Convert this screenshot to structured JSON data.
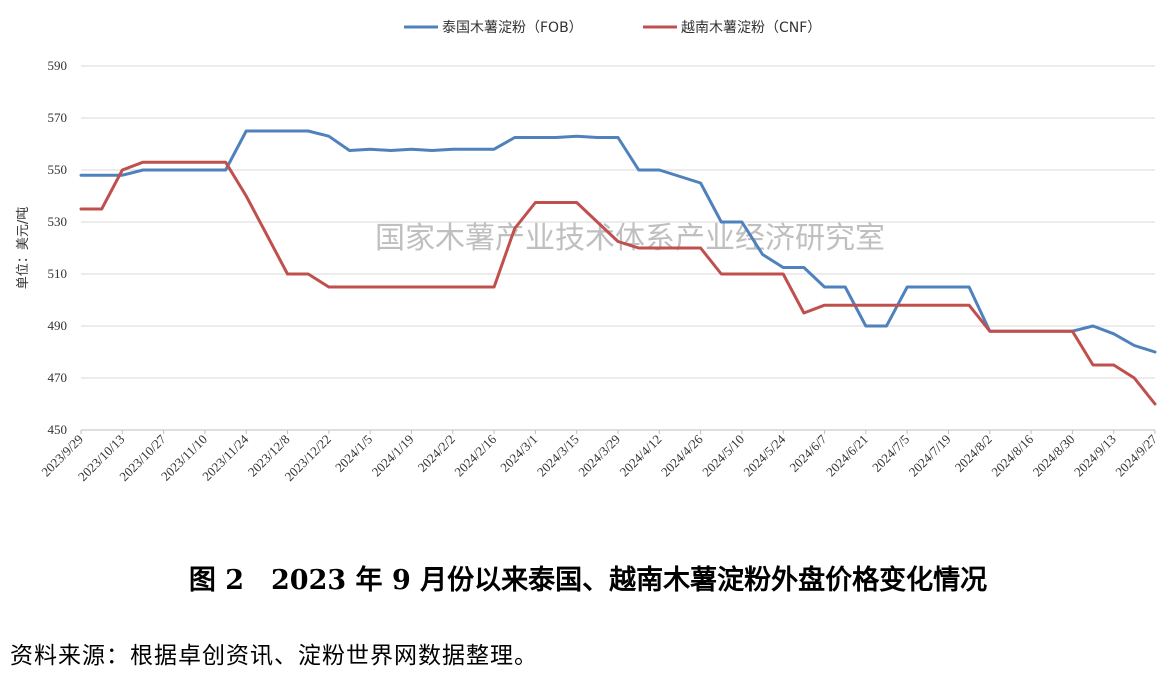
{
  "chart_data": {
    "type": "line",
    "ylabel": "单位：美元/吨",
    "ylim": [
      450,
      590
    ],
    "yticks": [
      450,
      470,
      490,
      510,
      530,
      550,
      570,
      590
    ],
    "grid": "horizontal",
    "legend_position": "top-center",
    "watermark": "国家木薯产业技术体系产业经济研究室",
    "x": [
      "2023/9/29",
      "2023/10/6",
      "2023/10/13",
      "2023/10/20",
      "2023/10/27",
      "2023/11/3",
      "2023/11/10",
      "2023/11/17",
      "2023/11/24",
      "2023/12/1",
      "2023/12/8",
      "2023/12/15",
      "2023/12/22",
      "2023/12/29",
      "2024/1/5",
      "2024/1/12",
      "2024/1/19",
      "2024/1/26",
      "2024/2/2",
      "2024/2/9",
      "2024/2/16",
      "2024/2/23",
      "2024/3/1",
      "2024/3/8",
      "2024/3/15",
      "2024/3/22",
      "2024/3/29",
      "2024/4/5",
      "2024/4/12",
      "2024/4/19",
      "2024/4/26",
      "2024/5/3",
      "2024/5/10",
      "2024/5/17",
      "2024/5/24",
      "2024/5/31",
      "2024/6/7",
      "2024/6/14",
      "2024/6/21",
      "2024/6/28",
      "2024/7/5",
      "2024/7/12",
      "2024/7/19",
      "2024/7/26",
      "2024/8/2",
      "2024/8/9",
      "2024/8/16",
      "2024/8/23",
      "2024/8/30",
      "2024/9/6",
      "2024/9/13",
      "2024/9/20",
      "2024/9/27"
    ],
    "xtick_labels": [
      "2023/9/29",
      "2023/10/13",
      "2023/10/27",
      "2023/11/10",
      "2023/11/24",
      "2023/12/8",
      "2023/12/22",
      "2024/1/5",
      "2024/1/19",
      "2024/2/2",
      "2024/2/16",
      "2024/3/1",
      "2024/3/15",
      "2024/3/29",
      "2024/4/12",
      "2024/4/26",
      "2024/5/10",
      "2024/5/24",
      "2024/6/7",
      "2024/6/21",
      "2024/7/5",
      "2024/7/19",
      "2024/8/2",
      "2024/8/16",
      "2024/8/30",
      "2024/9/13",
      "2024/9/27"
    ],
    "series": [
      {
        "name": "泰国木薯淀粉（FOB）",
        "color": "#4f81bd",
        "values": [
          548,
          548,
          548,
          550,
          550,
          550,
          550,
          550,
          565,
          565,
          565,
          565,
          563,
          557.5,
          558,
          557.5,
          558,
          557.5,
          558,
          558,
          558,
          562.5,
          562.5,
          562.5,
          563,
          562.5,
          562.5,
          550,
          550,
          547.5,
          545,
          530,
          530,
          517.5,
          512.5,
          512.5,
          505,
          505,
          490,
          490,
          505,
          505,
          505,
          505,
          488,
          488,
          488,
          488,
          488,
          490,
          487,
          482.5,
          480
        ]
      },
      {
        "name": "越南木薯淀粉（CNF）",
        "color": "#c0504d",
        "values": [
          535,
          535,
          550,
          553,
          553,
          553,
          553,
          553,
          540,
          525,
          510,
          510,
          505,
          505,
          505,
          505,
          505,
          505,
          505,
          505,
          505,
          527.5,
          537.5,
          537.5,
          537.5,
          530,
          522.5,
          520,
          520,
          520,
          520,
          510,
          510,
          510,
          510,
          495,
          498,
          498,
          498,
          498,
          498,
          498,
          498,
          498,
          488,
          488,
          488,
          488,
          488,
          475,
          475,
          470,
          460
        ]
      }
    ]
  },
  "caption": "图 2　2023 年 9 月份以来泰国、越南木薯淀粉外盘价格变化情况",
  "source": "资料来源：根据卓创资讯、淀粉世界网数据整理。"
}
